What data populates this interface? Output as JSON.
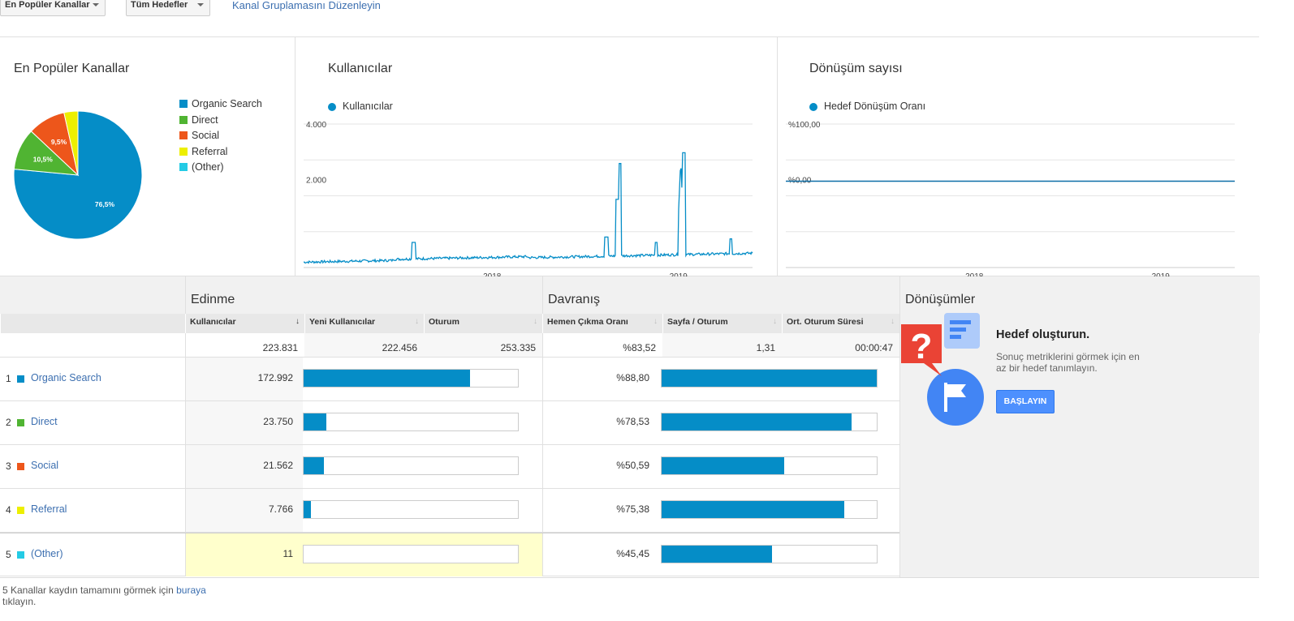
{
  "toolbar": {
    "dropdown1": "En Popüler Kanallar",
    "dropdown2": "Tüm Hedefler",
    "link": "Kanal Gruplamasını Düzenleyin"
  },
  "pie_panel": {
    "title": "En Popüler Kanallar",
    "legend": [
      {
        "label": "Organic Search",
        "color": "#058dc7"
      },
      {
        "label": "Direct",
        "color": "#50b432"
      },
      {
        "label": "Social",
        "color": "#ed561b"
      },
      {
        "label": "Referral",
        "color": "#edef00"
      },
      {
        "label": "(Other)",
        "color": "#24cbe5"
      }
    ],
    "slice_labels": [
      "76,5%",
      "10,5%",
      "9,5%"
    ]
  },
  "users_panel": {
    "title": "Kullanıcılar",
    "series": "Kullanıcılar",
    "y_ticks": [
      "4.000",
      "2.000"
    ],
    "x_ticks": [
      "2018",
      "2019"
    ]
  },
  "conv_panel": {
    "title": "Dönüşüm sayısı",
    "series": "Hedef Dönüşüm Oranı",
    "y_ticks": [
      "%100,00",
      "%0,00"
    ],
    "x_ticks": [
      "2018",
      "2019"
    ]
  },
  "chart_data": [
    {
      "type": "pie",
      "title": "En Popüler Kanallar",
      "categories": [
        "Organic Search",
        "Direct",
        "Social",
        "Referral",
        "(Other)"
      ],
      "values": [
        76.5,
        10.5,
        9.5,
        3.5,
        0.0
      ],
      "colors": [
        "#058dc7",
        "#50b432",
        "#ed561b",
        "#edef00",
        "#24cbe5"
      ],
      "legend": "right"
    },
    {
      "type": "line",
      "title": "Kullanıcılar",
      "series": [
        {
          "name": "Kullanıcılar",
          "color": "#058dc7"
        }
      ],
      "ylim": [
        0,
        4000
      ],
      "x_ticks": [
        "2018",
        "2019"
      ],
      "y_ticks": [
        2000,
        4000
      ],
      "spikes": [
        {
          "x": "2018-09",
          "y": 2900
        },
        {
          "x": "2018-12",
          "y": 3200
        }
      ]
    },
    {
      "type": "line",
      "title": "Dönüşüm sayısı",
      "series": [
        {
          "name": "Hedef Dönüşüm Oranı",
          "color": "#058dc7"
        }
      ],
      "ylim": [
        0,
        100
      ],
      "values_constant": 0.0,
      "x_ticks": [
        "2018",
        "2019"
      ]
    }
  ],
  "table": {
    "group_headers": {
      "acq": "Edinme",
      "beh": "Davranış",
      "conv": "Dönüşümler"
    },
    "columns": [
      "Kullanıcılar",
      "Yeni Kullanıcılar",
      "Oturum",
      "Hemen Çıkma Oranı",
      "Sayfa / Oturum",
      "Ort. Oturum Süresi"
    ],
    "totals": {
      "users": "223.831",
      "new_users": "222.456",
      "sessions": "253.335",
      "bounce": "%83,52",
      "pages": "1,31",
      "duration": "00:00:47"
    },
    "rows": [
      {
        "rank": "1",
        "name": "Organic Search",
        "color": "#058dc7",
        "users": "172.992",
        "new_users_pct": 77.8,
        "bounce": "%88,80",
        "bounce_pct": 100
      },
      {
        "rank": "2",
        "name": "Direct",
        "color": "#50b432",
        "users": "23.750",
        "new_users_pct": 10.6,
        "bounce": "%78,53",
        "bounce_pct": 88.4
      },
      {
        "rank": "3",
        "name": "Social",
        "color": "#ed561b",
        "users": "21.562",
        "new_users_pct": 9.6,
        "bounce": "%50,59",
        "bounce_pct": 57
      },
      {
        "rank": "4",
        "name": "Referral",
        "color": "#edef00",
        "users": "7.766",
        "new_users_pct": 3.5,
        "bounce": "%75,38",
        "bounce_pct": 84.9
      },
      {
        "rank": "5",
        "name": "(Other)",
        "color": "#24cbe5",
        "users": "11",
        "new_users_pct": 0,
        "bounce": "%45,45",
        "bounce_pct": 51.2
      }
    ]
  },
  "goal_card": {
    "title": "Hedef oluşturun.",
    "text1": "Sonuç metriklerini görmek için en",
    "text2": "az bir hedef tanımlayın.",
    "button": "BAŞLAYIN"
  },
  "footer": {
    "text1": "5 Kanallar kaydın tamamını görmek için ",
    "link": "buraya",
    "text2": "tıklayın."
  }
}
